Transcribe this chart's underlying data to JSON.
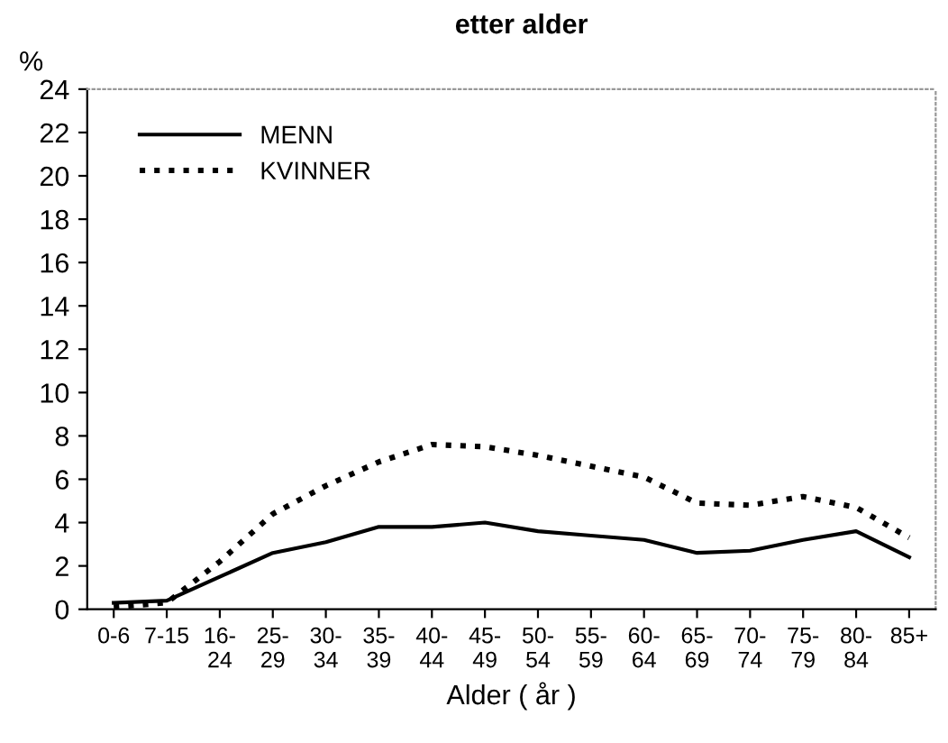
{
  "chart_data": {
    "type": "line",
    "title": "etter alder",
    "ylabel": "%",
    "xlabel": "Alder ( år )",
    "categories": [
      "0-6",
      "7-15",
      "16-\n24",
      "25-\n29",
      "30-\n34",
      "35-\n39",
      "40-\n44",
      "45-\n49",
      "50-\n54",
      "55-\n59",
      "60-\n64",
      "65-\n69",
      "70-\n74",
      "75-\n79",
      "80-\n84",
      "85+"
    ],
    "series": [
      {
        "name": "MENN",
        "color": "#000000",
        "line_style": "solid",
        "values": [
          0.3,
          0.4,
          1.5,
          2.6,
          3.1,
          3.8,
          3.8,
          4.0,
          3.6,
          3.4,
          3.2,
          2.6,
          2.7,
          3.2,
          3.6,
          2.4
        ]
      },
      {
        "name": "KVINNER",
        "color": "#000000",
        "line_style": "dotted",
        "values": [
          0.1,
          0.3,
          2.2,
          4.4,
          5.7,
          6.8,
          7.6,
          7.5,
          7.1,
          6.6,
          6.1,
          4.9,
          4.8,
          5.2,
          4.7,
          3.3
        ]
      }
    ],
    "ylim": [
      0,
      24
    ],
    "yticks": [
      0,
      2,
      4,
      6,
      8,
      10,
      12,
      14,
      16,
      18,
      20,
      22,
      24
    ],
    "grid": false,
    "legend": "top left",
    "marker": "none"
  }
}
